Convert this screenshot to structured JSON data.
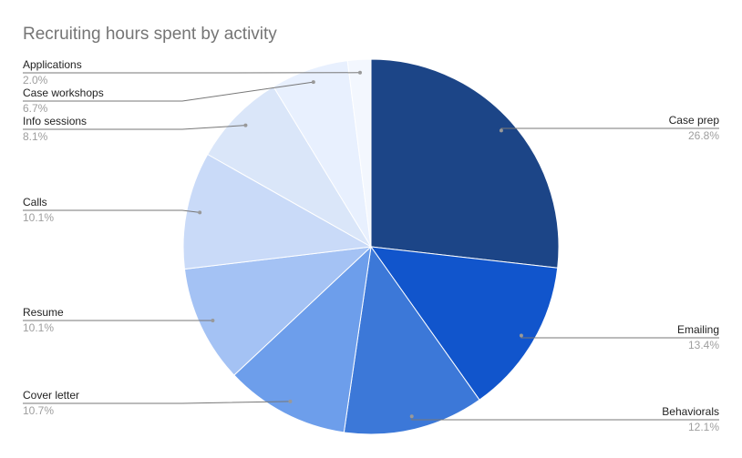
{
  "chart_data": {
    "type": "pie",
    "title": "Recruiting hours spent by activity",
    "categories": [
      "Case prep",
      "Emailing",
      "Behaviorals",
      "Cover letter",
      "Resume",
      "Calls",
      "Info sessions",
      "Case workshops",
      "Applications"
    ],
    "values": [
      26.8,
      13.4,
      12.1,
      10.7,
      10.1,
      10.1,
      8.1,
      6.7,
      2.0
    ],
    "value_labels": [
      "26.8%",
      "13.4%",
      "12.1%",
      "10.7%",
      "10.1%",
      "10.1%",
      "8.1%",
      "6.7%",
      "2.0%"
    ],
    "colors": [
      "#1c4587",
      "#1155cc",
      "#3c78d8",
      "#6d9eeb",
      "#a4c2f4",
      "#c9daf8",
      "#dae6f9",
      "#e8f0fe",
      "#f3f7fe"
    ]
  }
}
